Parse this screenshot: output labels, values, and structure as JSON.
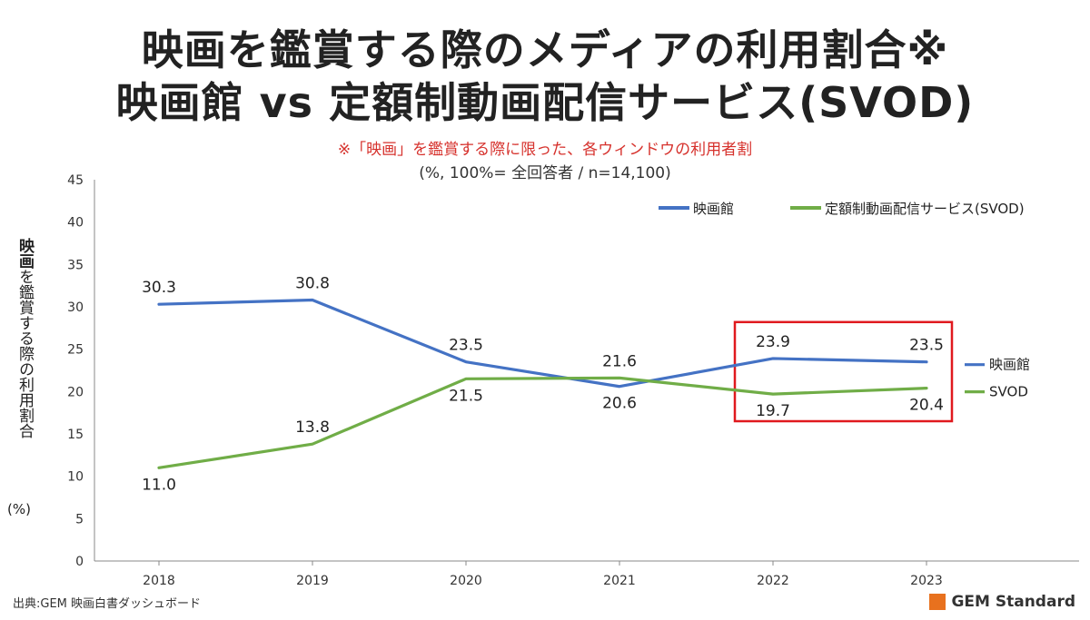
{
  "header": {
    "title_line1": "映画を鑑賞する際のメディアの利用割合※",
    "title_line2": "映画館 vs 定額制動画配信サービス(SVOD)",
    "note": "※「映画」を鑑賞する際に限った、各ウィンドウの利用者割",
    "basis": "(%, 100%= 全回答者 / n=14,100)"
  },
  "y_axis": {
    "label_bold": "映画",
    "label_rest": "を鑑賞する際の利用割合",
    "unit": "(%)"
  },
  "footer": {
    "source": "出典:GEM 映画白書ダッシュボード",
    "logo_text": "GEM Standard"
  },
  "chart_data": {
    "type": "line",
    "x": [
      "2018",
      "2019",
      "2020",
      "2021",
      "2022",
      "2023"
    ],
    "ylim": [
      0,
      45
    ],
    "yticks": [
      0,
      5,
      10,
      15,
      20,
      25,
      30,
      35,
      40,
      45
    ],
    "grid": false,
    "legend": [
      "映画館",
      "定額制動画配信サービス(SVOD)"
    ],
    "legend_position": "top-right",
    "series": [
      {
        "name": "映画館",
        "end_label": "映画館",
        "color": "#4472c4",
        "values": [
          30.3,
          30.8,
          23.5,
          20.6,
          23.9,
          23.5
        ],
        "labels": [
          "30.3",
          "30.8",
          "23.5",
          "20.6",
          "23.9",
          "23.5"
        ]
      },
      {
        "name": "定額制動画配信サービス(SVOD)",
        "end_label": "SVOD",
        "color": "#70ad47",
        "values": [
          11.0,
          13.8,
          21.5,
          21.6,
          19.7,
          20.4
        ],
        "labels": [
          "11.0",
          "13.8",
          "21.5",
          "21.6",
          "19.7",
          "20.4"
        ]
      }
    ],
    "highlight": {
      "from": "2022",
      "to": "2023",
      "color": "#e0191e"
    }
  }
}
